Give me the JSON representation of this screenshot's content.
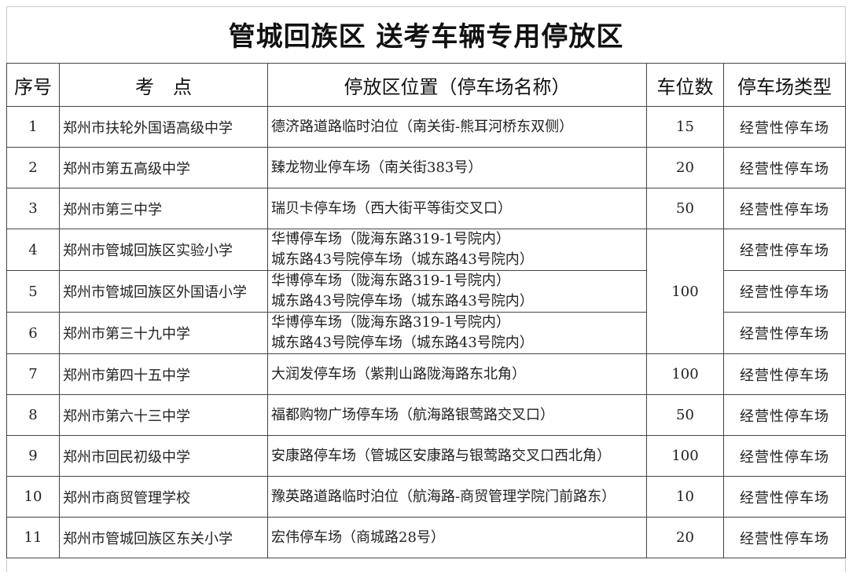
{
  "title": "管城回族区 送考车辆专用停放区",
  "headers": [
    "序号",
    "考　点",
    "停放区位置（停车场名称）",
    "车位数",
    "停车场类型"
  ],
  "rows": [
    {
      "no": "1",
      "school": "郑州市扶轮外国语高级中学",
      "location": [
        "德济路道路临时泊位（南关街-熊耳河桥东双侧）"
      ],
      "spaces": "15",
      "type": "经营性停车场"
    },
    {
      "no": "2",
      "school": "郑州市第五高级中学",
      "location": [
        "臻龙物业停车场（南关街383号）"
      ],
      "spaces": "20",
      "type": "经营性停车场"
    },
    {
      "no": "3",
      "school": "郑州市第三中学",
      "location": [
        "瑞贝卡停车场（西大街平等街交叉口）"
      ],
      "spaces": "50",
      "type": "经营性停车场"
    },
    {
      "no": "4",
      "school": "郑州市管城回族区实验小学",
      "location": [
        "华博停车场（陇海东路319-1号院内）",
        "城东路43号院停车场（城东路43号院内）"
      ],
      "spaces": "100",
      "type": "经营性停车场"
    },
    {
      "no": "5",
      "school": "郑州市管城回族区外国语小学",
      "location": [
        "华博停车场（陇海东路319-1号院内）",
        "城东路43号院停车场（城东路43号院内）"
      ],
      "type": "经营性停车场"
    },
    {
      "no": "6",
      "school": "郑州市第三十九中学",
      "location": [
        "华博停车场（陇海东路319-1号院内）",
        "城东路43号院停车场（城东路43号院内）"
      ],
      "type": "经营性停车场"
    },
    {
      "no": "7",
      "school": "郑州市第四十五中学",
      "location": [
        "大润发停车场（紫荆山路陇海路东北角）"
      ],
      "spaces": "100",
      "type": "经营性停车场"
    },
    {
      "no": "8",
      "school": "郑州市第六十三中学",
      "location": [
        "福都购物广场停车场（航海路银莺路交叉口）"
      ],
      "spaces": "50",
      "type": "经营性停车场"
    },
    {
      "no": "9",
      "school": "郑州市回民初级中学",
      "location": [
        "安康路停车场（管城区安康路与银莺路交叉口西北角）"
      ],
      "spaces": "100",
      "type": "经营性停车场"
    },
    {
      "no": "10",
      "school": "郑州市商贸管理学校",
      "location": [
        "豫英路道路临时泊位（航海路-商贸管理学院门前路东）"
      ],
      "spaces": "10",
      "type": "经营性停车场"
    },
    {
      "no": "11",
      "school": "郑州市管城回族区东关小学",
      "location": [
        "宏伟停车场（商城路28号）"
      ],
      "spaces": "20",
      "type": "经营性停车场"
    }
  ]
}
